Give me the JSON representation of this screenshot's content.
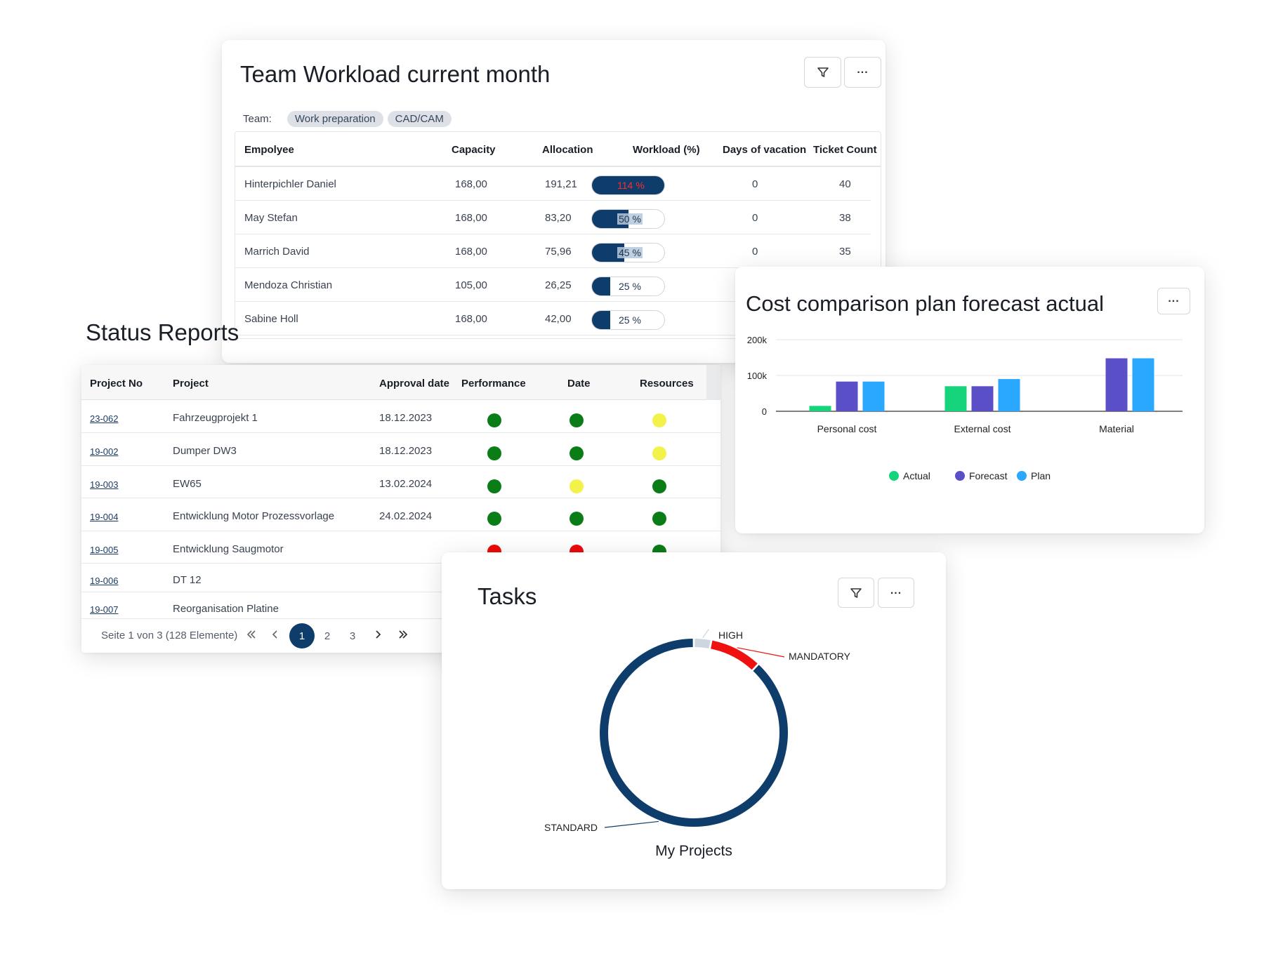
{
  "workload": {
    "title": "Team Workload current month",
    "team_label": "Team:",
    "teams": [
      "Work preparation",
      "CAD/CAM"
    ],
    "columns": [
      "Empolyee",
      "Capacity",
      "Allocation",
      "Workload (%)",
      "Days of vacation",
      "Ticket Count"
    ],
    "rows": [
      {
        "employee": "Hinterpichler Daniel",
        "capacity": "168,00",
        "allocation": "191,21",
        "workload": "114 %",
        "workload_value": 1.14,
        "vacation": "0",
        "tickets": "40"
      },
      {
        "employee": "May Stefan",
        "capacity": "168,00",
        "allocation": "83,20",
        "workload": "50 %",
        "workload_value": 0.5,
        "vacation": "0",
        "tickets": "38"
      },
      {
        "employee": "Marrich David",
        "capacity": "168,00",
        "allocation": "75,96",
        "workload": "45 %",
        "workload_value": 0.45,
        "vacation": "0",
        "tickets": "35"
      },
      {
        "employee": "Mendoza Christian",
        "capacity": "105,00",
        "allocation": "26,25",
        "workload": "25 %",
        "workload_value": 0.25,
        "vacation": "",
        "tickets": ""
      },
      {
        "employee": "Sabine Holl",
        "capacity": "168,00",
        "allocation": "42,00",
        "workload": "25 %",
        "workload_value": 0.25,
        "vacation": "",
        "tickets": ""
      }
    ],
    "filter_icon": "filter-icon",
    "more_icon": "more-icon"
  },
  "status": {
    "title": "Status Reports",
    "columns": [
      "Project No",
      "Project",
      "Approval date",
      "Performance",
      "Date",
      "Resources"
    ],
    "rows": [
      {
        "no": "23-062",
        "project": "Fahrzeugprojekt 1",
        "date": "18.12.2023",
        "performance": "green",
        "date_status": "green",
        "resources": "yellow"
      },
      {
        "no": "19-002",
        "project": "Dumper DW3",
        "date": "18.12.2023",
        "performance": "green",
        "date_status": "green",
        "resources": "yellow"
      },
      {
        "no": "19-003",
        "project": "EW65",
        "date": "13.02.2024",
        "performance": "green",
        "date_status": "yellow",
        "resources": "green"
      },
      {
        "no": "19-004",
        "project": "Entwicklung Motor Prozessvorlage",
        "date": "24.02.2024",
        "performance": "green",
        "date_status": "green",
        "resources": "green"
      },
      {
        "no": "19-005",
        "project": "Entwicklung Saugmotor",
        "date": "",
        "performance": "red",
        "date_status": "red",
        "resources": "green"
      },
      {
        "no": "19-006",
        "project": "DT 12",
        "date": "",
        "performance": "",
        "date_status": "",
        "resources": ""
      },
      {
        "no": "19-007",
        "project": "Reorganisation Platine",
        "date": "",
        "performance": "",
        "date_status": "",
        "resources": ""
      }
    ],
    "pager": {
      "summary": "Seite 1 von 3 (128 Elemente)",
      "pages": [
        "1",
        "2",
        "3"
      ],
      "active": "1"
    }
  },
  "colors": {
    "navy": "#0f3d6b",
    "green": "#0a7d16",
    "yellow": "#f3f24a",
    "red": "#ee0a0a",
    "actual": "#16d47c",
    "forecast": "#5b4fc8",
    "plan": "#2aa7ff",
    "mandatory": "#ef1010",
    "high": "#cdd6e0"
  },
  "cost": {
    "title": "Cost comparison plan forecast actual",
    "more_icon": "more-icon"
  },
  "tasks": {
    "title": "Tasks",
    "subtitle": "My Projects",
    "filter_icon": "filter-icon",
    "more_icon": "more-icon"
  },
  "chart_data": [
    {
      "type": "bar",
      "title": "Cost comparison plan forecast actual",
      "categories": [
        "Personal cost",
        "External cost",
        "Material"
      ],
      "series": [
        {
          "name": "Actual",
          "values": [
            15000,
            70000,
            0
          ]
        },
        {
          "name": "Forecast",
          "values": [
            83000,
            70000,
            148000
          ]
        },
        {
          "name": "Plan",
          "values": [
            83000,
            90000,
            148000
          ]
        }
      ],
      "ylim": [
        0,
        200000
      ],
      "yticks": [
        "0",
        "100k",
        "200k"
      ],
      "grid": true,
      "legend": "bottom"
    },
    {
      "type": "pie",
      "title": "My Projects",
      "labels": [
        "HIGH",
        "MANDATORY",
        "STANDARD"
      ],
      "values": [
        3,
        9,
        88
      ],
      "donut": true
    }
  ]
}
